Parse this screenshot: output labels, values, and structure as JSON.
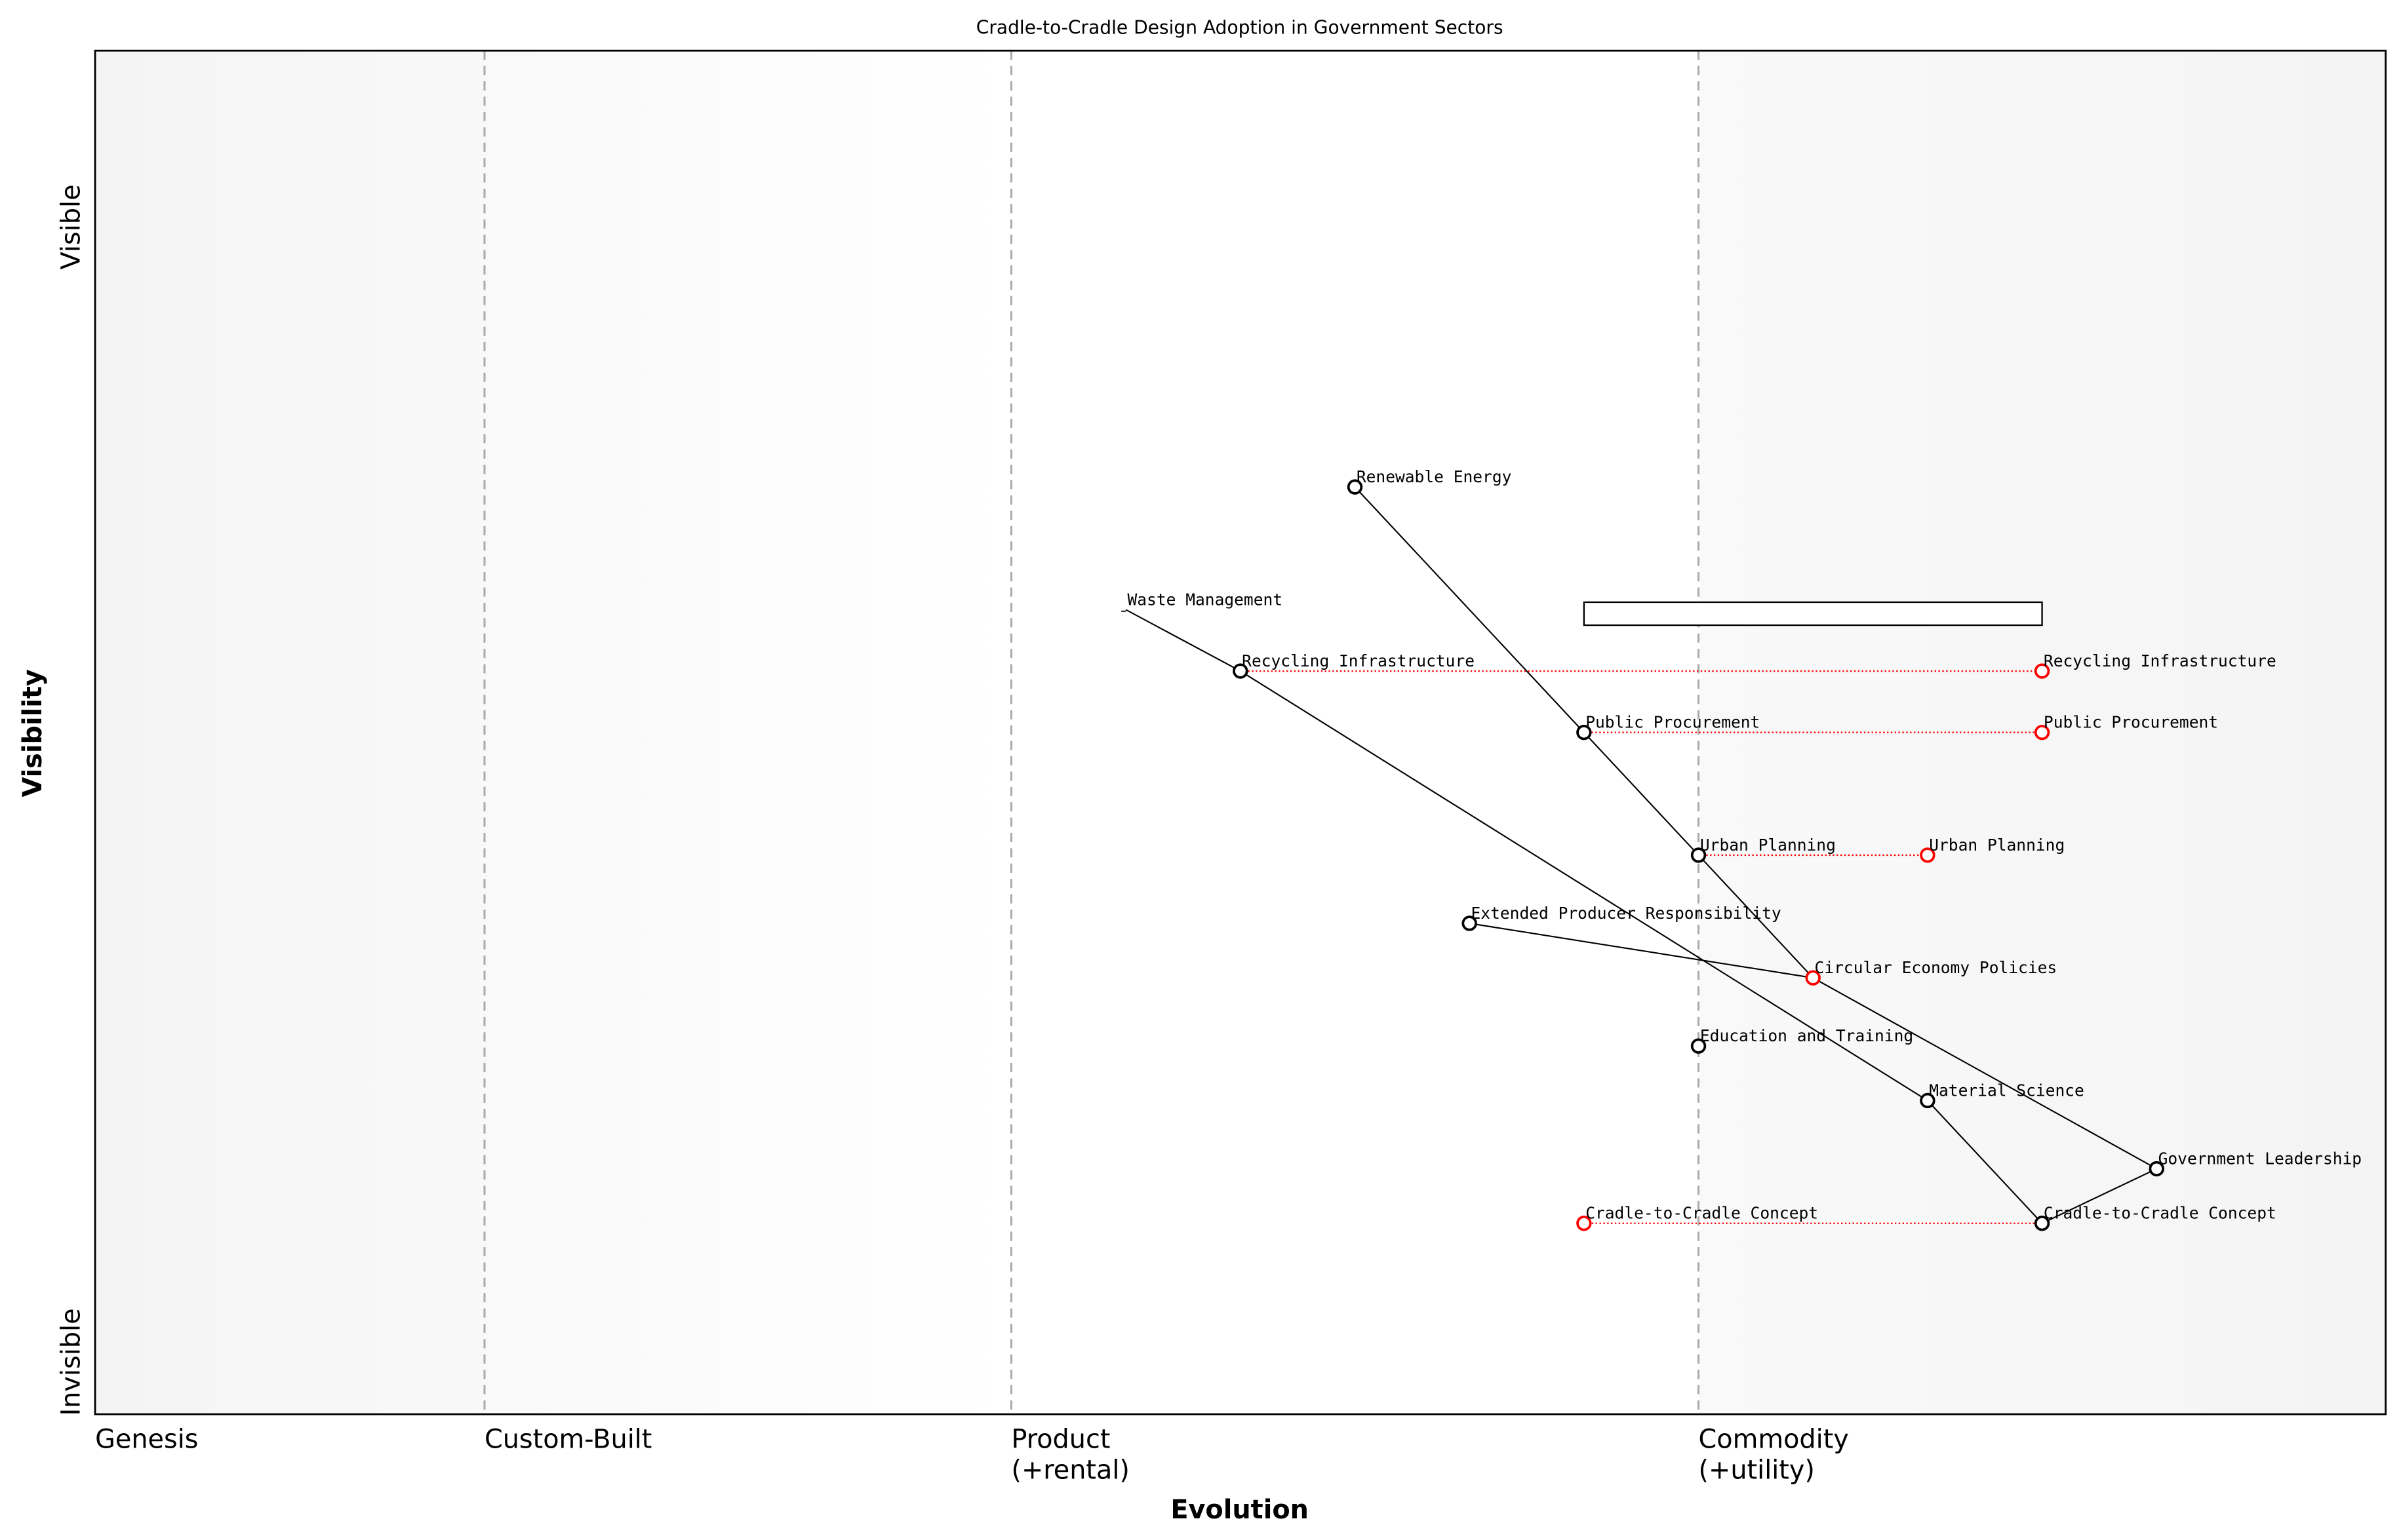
{
  "title": "Cradle-to-Cradle Design Adoption in Government Sectors",
  "x_axis": {
    "label": "Evolution",
    "stages": [
      {
        "value": 0.0,
        "line1": "Genesis",
        "line2": ""
      },
      {
        "value": 0.17,
        "line1": "Custom-Built",
        "line2": ""
      },
      {
        "value": 0.4,
        "line1": "Product",
        "line2": "(+rental)"
      },
      {
        "value": 0.7,
        "line1": "Commodity",
        "line2": "(+utility)"
      }
    ]
  },
  "y_axis": {
    "label": "Visibility",
    "top_label": "Visible",
    "bottom_label": "Invisible"
  },
  "colors": {
    "node": "#000000",
    "evolved": "#ff0000",
    "stage_line": "#aaaaaa"
  },
  "components": [
    {
      "id": "re",
      "name": "Renewable Energy",
      "evolution": 0.55,
      "visibility": 0.68
    },
    {
      "id": "wm",
      "name": "Waste Management",
      "evolution": 0.45,
      "visibility": 0.59,
      "marker": "none"
    },
    {
      "id": "ri",
      "name": "Recycling Infrastructure",
      "evolution": 0.5,
      "visibility": 0.545
    },
    {
      "id": "pp",
      "name": "Public Procurement",
      "evolution": 0.65,
      "visibility": 0.5
    },
    {
      "id": "up",
      "name": "Urban Planning",
      "evolution": 0.7,
      "visibility": 0.41
    },
    {
      "id": "epr",
      "name": "Extended Producer Responsibility",
      "evolution": 0.6,
      "visibility": 0.36
    },
    {
      "id": "cep",
      "name": "Circular Economy Policies",
      "evolution": 0.75,
      "visibility": 0.32,
      "marker": "red"
    },
    {
      "id": "et",
      "name": "Education and Training",
      "evolution": 0.7,
      "visibility": 0.27
    },
    {
      "id": "ms",
      "name": "Material Science",
      "evolution": 0.8,
      "visibility": 0.23
    },
    {
      "id": "gl",
      "name": "Government Leadership",
      "evolution": 0.9,
      "visibility": 0.18
    },
    {
      "id": "c2c",
      "name": "Cradle-to-Cradle Concept",
      "evolution": 0.85,
      "visibility": 0.14
    }
  ],
  "evolutions": [
    {
      "from": "ri",
      "name": "Recycling Infrastructure",
      "evolution": 0.85
    },
    {
      "from": "pp",
      "name": "Public Procurement",
      "evolution": 0.85
    },
    {
      "from": "up",
      "name": "Urban Planning",
      "evolution": 0.8
    },
    {
      "from": "c2c",
      "name": "Cradle-to-Cradle Concept",
      "evolution": 0.65
    }
  ],
  "links": [
    [
      "wm",
      "ri"
    ],
    [
      "ri",
      "ms"
    ],
    [
      "re",
      "pp"
    ],
    [
      "pp",
      "up"
    ],
    [
      "up",
      "cep"
    ],
    [
      "cep",
      "gl"
    ],
    [
      "epr",
      "cep"
    ],
    [
      "ms",
      "c2c"
    ],
    [
      "c2c",
      "gl"
    ]
  ],
  "pipeline": {
    "evolution_start": 0.65,
    "evolution_end": 0.85,
    "visibility": 0.6
  }
}
